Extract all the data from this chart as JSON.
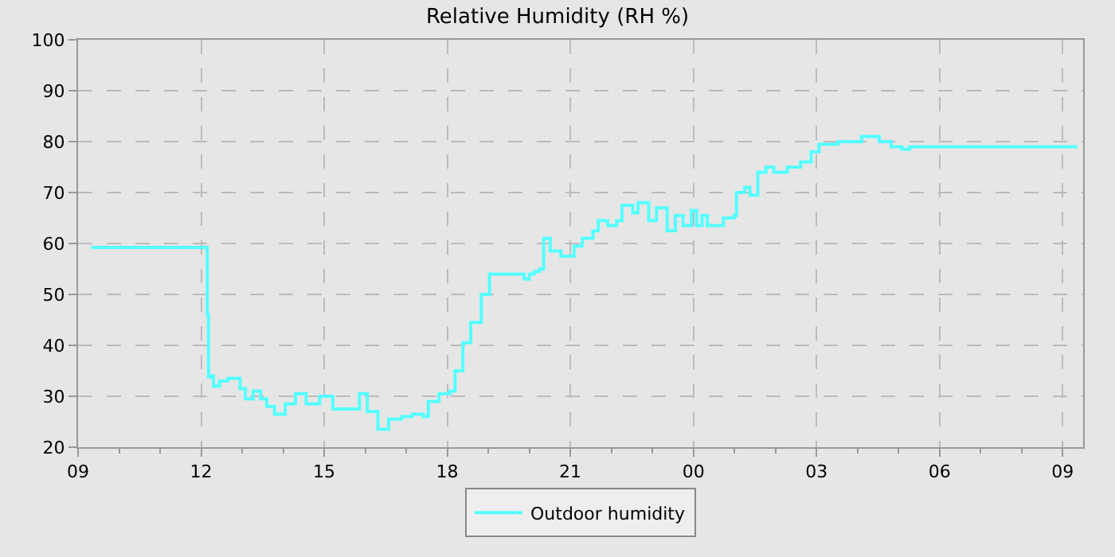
{
  "chart_data": {
    "type": "step",
    "title": "Relative Humidity (RH %)",
    "x": [
      9.32,
      12.13,
      12.15,
      12.18,
      12.25,
      12.3,
      12.45,
      12.65,
      12.95,
      13.08,
      13.27,
      13.45,
      13.6,
      13.79,
      14.05,
      14.3,
      14.56,
      14.89,
      15.21,
      15.6,
      15.86,
      16.05,
      16.31,
      16.57,
      16.89,
      17.15,
      17.41,
      17.54,
      17.8,
      18.06,
      18.19,
      18.38,
      18.57,
      18.83,
      19.03,
      19.74,
      19.87,
      20.0,
      20.12,
      20.25,
      20.35,
      20.51,
      20.77,
      21.09,
      21.29,
      21.55,
      21.68,
      21.91,
      22.13,
      22.26,
      22.52,
      22.65,
      22.91,
      23.1,
      23.36,
      23.56,
      23.75,
      23.95,
      24.08,
      24.21,
      24.34,
      24.6,
      24.73,
      24.99,
      25.05,
      25.25,
      25.38,
      25.57,
      25.77,
      25.96,
      26.29,
      26.61,
      26.87,
      27.06,
      27.52,
      28.1,
      28.53,
      28.82,
      29.08,
      29.27,
      33.36
    ],
    "series": [
      {
        "name": "Outdoor humidity",
        "color": "#55ffff",
        "values": [
          59.2,
          59.2,
          46,
          33.8,
          34,
          32,
          33,
          33.5,
          31.5,
          29.5,
          31,
          29.5,
          28,
          26.5,
          28.5,
          30.5,
          28.5,
          30,
          27.5,
          27.5,
          30.5,
          27,
          23.5,
          25.5,
          26,
          26.5,
          26,
          29,
          30.5,
          31,
          35,
          40.5,
          44.5,
          50,
          54,
          54,
          53,
          54,
          54.5,
          55,
          61,
          58.5,
          57.5,
          59.5,
          61,
          62.5,
          64.5,
          63.5,
          64.5,
          67.5,
          66,
          68,
          64.5,
          67,
          62.5,
          65.5,
          63.5,
          66.5,
          63.5,
          65.5,
          63.5,
          63.5,
          65,
          65.5,
          70,
          71,
          69.5,
          74,
          75,
          74,
          75,
          76,
          78,
          79.5,
          80,
          81,
          80,
          79,
          78.5,
          79,
          79
        ]
      }
    ],
    "xlim": [
      9,
      33.5
    ],
    "xticks": [
      {
        "value": 9,
        "label": "09"
      },
      {
        "value": 12,
        "label": "12"
      },
      {
        "value": 15,
        "label": "15"
      },
      {
        "value": 18,
        "label": "18"
      },
      {
        "value": 21,
        "label": "21"
      },
      {
        "value": 24,
        "label": "00"
      },
      {
        "value": 27,
        "label": "03"
      },
      {
        "value": 30,
        "label": "06"
      },
      {
        "value": 33,
        "label": "09"
      }
    ],
    "ylim": [
      20,
      100
    ],
    "yticks": [
      20,
      30,
      40,
      50,
      60,
      70,
      80,
      90,
      100
    ],
    "grid": true,
    "line_style": "solid",
    "legend": "bottom"
  }
}
